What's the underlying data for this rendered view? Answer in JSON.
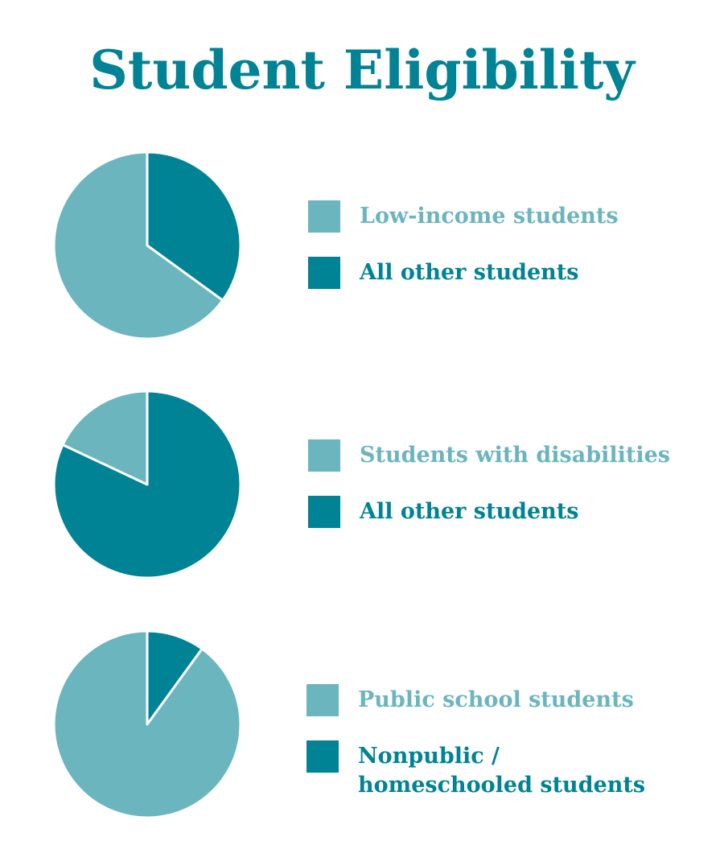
{
  "title": "Student Eligibility",
  "colors": {
    "light": "#6bb5bf",
    "dark": "#008394"
  },
  "chart_data": [
    {
      "type": "pie",
      "slices": [
        {
          "label": "Low-income students",
          "value": 65,
          "color": "#6bb5bf"
        },
        {
          "label": "All other students",
          "value": 35,
          "color": "#008394"
        }
      ]
    },
    {
      "type": "pie",
      "slices": [
        {
          "label": "Students with disabilities",
          "value": 18,
          "color": "#6bb5bf"
        },
        {
          "label": "All other students",
          "value": 82,
          "color": "#008394"
        }
      ]
    },
    {
      "type": "pie",
      "slices": [
        {
          "label": "Public school students",
          "value": 90,
          "color": "#6bb5bf"
        },
        {
          "label": "Nonpublic / homeschooled students",
          "value": 10,
          "color": "#008394"
        }
      ]
    }
  ]
}
